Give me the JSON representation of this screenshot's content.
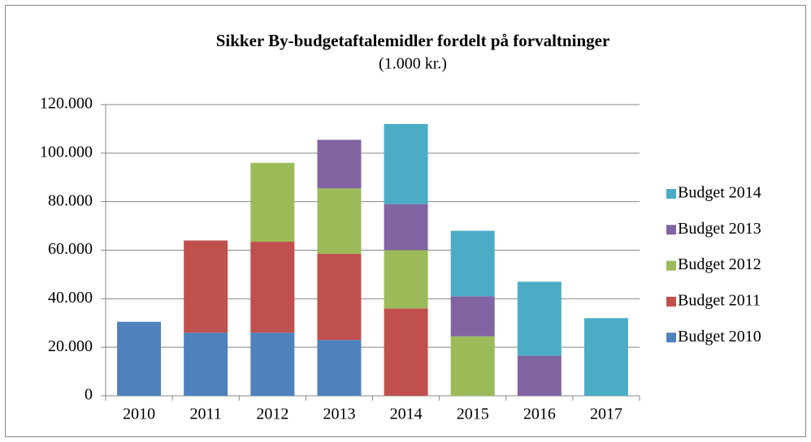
{
  "chart_data": {
    "type": "stacked_bar",
    "title": "Sikker By-budgetaftalemidler fordelt på forvaltninger",
    "subtitle": "(1.000 kr.)",
    "categories": [
      "2010",
      "2011",
      "2012",
      "2013",
      "2014",
      "2015",
      "2016",
      "2017"
    ],
    "series": [
      {
        "name": "Budget 2010",
        "color": "#4f81bd",
        "values": [
          30500,
          26000,
          26000,
          23000,
          0,
          0,
          0,
          0
        ]
      },
      {
        "name": "Budget 2011",
        "color": "#c0504d",
        "values": [
          0,
          38000,
          37500,
          35500,
          36000,
          0,
          0,
          0
        ]
      },
      {
        "name": "Budget 2012",
        "color": "#9bbb59",
        "values": [
          0,
          0,
          32500,
          27000,
          24000,
          24500,
          0,
          0
        ]
      },
      {
        "name": "Budget 2013",
        "color": "#8064a2",
        "values": [
          0,
          0,
          0,
          20000,
          19000,
          16500,
          16500,
          0
        ]
      },
      {
        "name": "Budget 2014",
        "color": "#4bacc6",
        "values": [
          0,
          0,
          0,
          0,
          33000,
          27000,
          30500,
          32000
        ]
      }
    ],
    "ylim": [
      0,
      120000
    ],
    "yticks": [
      0,
      {
        "value": 20000,
        "label": "20.000"
      },
      {
        "value": 40000,
        "label": "40.000"
      },
      {
        "value": 60000,
        "label": "60.000"
      },
      {
        "value": 80000,
        "label": "80.000"
      },
      {
        "value": 100000,
        "label": "100.000"
      },
      {
        "value": 120000,
        "label": "120.000"
      }
    ],
    "grid": true,
    "legend": "right"
  }
}
